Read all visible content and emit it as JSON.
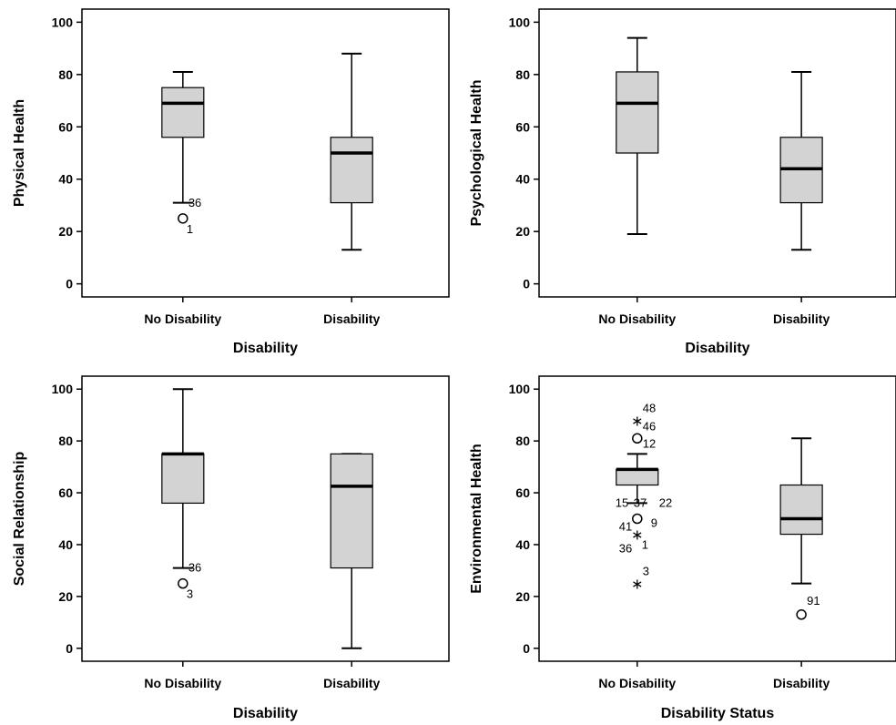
{
  "colors": {
    "box_fill": "#d3d3d3",
    "stroke": "#000000",
    "background": "#ffffff"
  },
  "chart_data": [
    {
      "type": "box",
      "title": "",
      "xlabel": "Disability",
      "ylabel": "Physical Health",
      "ylim": [
        -5,
        105
      ],
      "yticks": [
        "0",
        "20",
        "40",
        "60",
        "80",
        "100"
      ],
      "categories": [
        "No Disability",
        "Disability"
      ],
      "boxes": [
        {
          "category": "No Disability",
          "whisker_low": 31,
          "q1": 56,
          "median": 69,
          "q3": 75,
          "whisker_high": 81,
          "outliers": [
            {
              "value": 25,
              "marker": "circle",
              "labels": [
                "36",
                "1"
              ]
            }
          ]
        },
        {
          "category": "Disability",
          "whisker_low": 13,
          "q1": 31,
          "median": 50,
          "q3": 56,
          "whisker_high": 88,
          "outliers": []
        }
      ]
    },
    {
      "type": "box",
      "title": "",
      "xlabel": "Disability",
      "ylabel": "Psychological Health",
      "ylim": [
        -5,
        105
      ],
      "yticks": [
        "0",
        "20",
        "40",
        "60",
        "80",
        "100"
      ],
      "categories": [
        "No Disability",
        "Disability"
      ],
      "boxes": [
        {
          "category": "No Disability",
          "whisker_low": 19,
          "q1": 50,
          "median": 69,
          "q3": 81,
          "whisker_high": 94,
          "outliers": []
        },
        {
          "category": "Disability",
          "whisker_low": 13,
          "q1": 31,
          "median": 44,
          "q3": 56,
          "whisker_high": 81,
          "outliers": []
        }
      ]
    },
    {
      "type": "box",
      "title": "",
      "xlabel": "Disability",
      "ylabel": "Social Relationship",
      "ylim": [
        -5,
        105
      ],
      "yticks": [
        "0",
        "20",
        "40",
        "60",
        "80",
        "100"
      ],
      "categories": [
        "No Disability",
        "Disability"
      ],
      "boxes": [
        {
          "category": "No Disability",
          "whisker_low": 31,
          "q1": 56,
          "median": 75,
          "q3": 75,
          "whisker_high": 100,
          "outliers": [
            {
              "value": 25,
              "marker": "circle",
              "labels": [
                "36",
                "3"
              ]
            }
          ]
        },
        {
          "category": "Disability",
          "whisker_low": 0,
          "q1": 31,
          "median": 62.5,
          "q3": 75,
          "whisker_high": 75,
          "outliers": []
        }
      ]
    },
    {
      "type": "box",
      "title": "",
      "xlabel": "Disability Status",
      "ylabel": "Environmental Health",
      "ylim": [
        -5,
        105
      ],
      "yticks": [
        "0",
        "20",
        "40",
        "60",
        "80",
        "100"
      ],
      "categories": [
        "No Disability",
        "Disability"
      ],
      "boxes": [
        {
          "category": "No Disability",
          "whisker_low": 56,
          "q1": 63,
          "median": 69,
          "q3": 69,
          "whisker_high": 75,
          "outliers": [
            {
              "value": 88,
              "marker": "star",
              "labels": [
                "48"
              ]
            },
            {
              "value": 81,
              "marker": "circle",
              "labels": [
                "46"
              ]
            },
            {
              "value": 75,
              "marker": "none",
              "labels": [
                "12"
              ]
            },
            {
              "value": 56,
              "marker": "none",
              "labels": [
                "15",
                "37",
                "22"
              ]
            },
            {
              "value": 50,
              "marker": "circle",
              "labels": [
                "9"
              ]
            },
            {
              "value": 44,
              "marker": "star",
              "labels": [
                "41",
                "1",
                "36"
              ]
            },
            {
              "value": 25,
              "marker": "star",
              "labels": [
                "3"
              ]
            }
          ]
        },
        {
          "category": "Disability",
          "whisker_low": 25,
          "q1": 44,
          "median": 50,
          "q3": 63,
          "whisker_high": 81,
          "outliers": [
            {
              "value": 13,
              "marker": "circle",
              "labels": [
                "91"
              ]
            }
          ]
        }
      ]
    }
  ]
}
